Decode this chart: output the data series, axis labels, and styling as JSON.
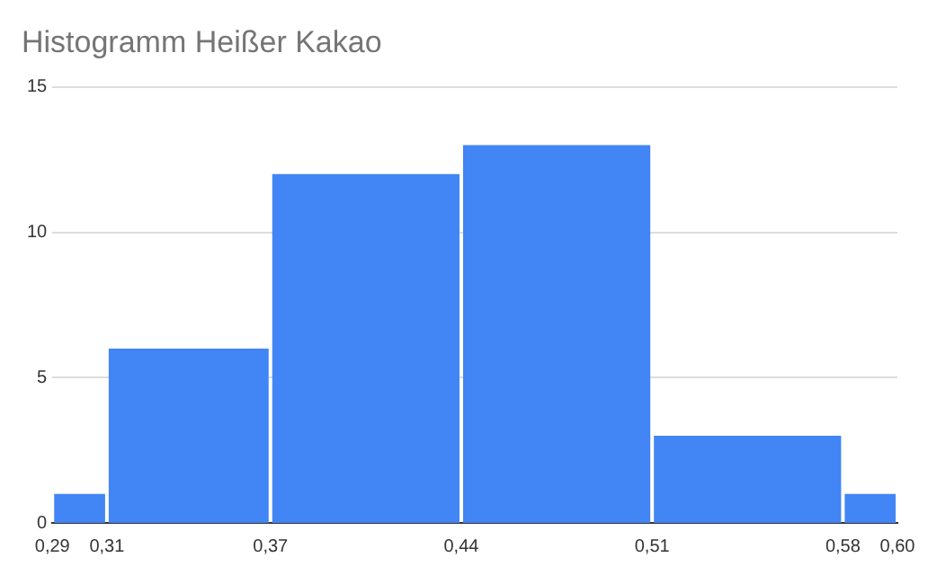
{
  "chart_data": {
    "type": "histogram",
    "title": "Histogramm Heißer Kakao",
    "bins": [
      0.29,
      0.31,
      0.37,
      0.44,
      0.51,
      0.58,
      0.6
    ],
    "values": [
      1,
      6,
      12,
      13,
      3,
      1
    ],
    "color": "#4285f4",
    "xlim": [
      0.29,
      0.6
    ],
    "xticks": [
      {
        "value": 0.29,
        "label": "0,29"
      },
      {
        "value": 0.31,
        "label": "0,31"
      },
      {
        "value": 0.37,
        "label": "0,37"
      },
      {
        "value": 0.44,
        "label": "0,44"
      },
      {
        "value": 0.51,
        "label": "0,51"
      },
      {
        "value": 0.58,
        "label": "0,58"
      },
      {
        "value": 0.6,
        "label": "0,60"
      }
    ],
    "ylim": [
      0,
      15
    ],
    "yticks": [
      0,
      5,
      10,
      15
    ],
    "grid": "y",
    "legend": false
  }
}
